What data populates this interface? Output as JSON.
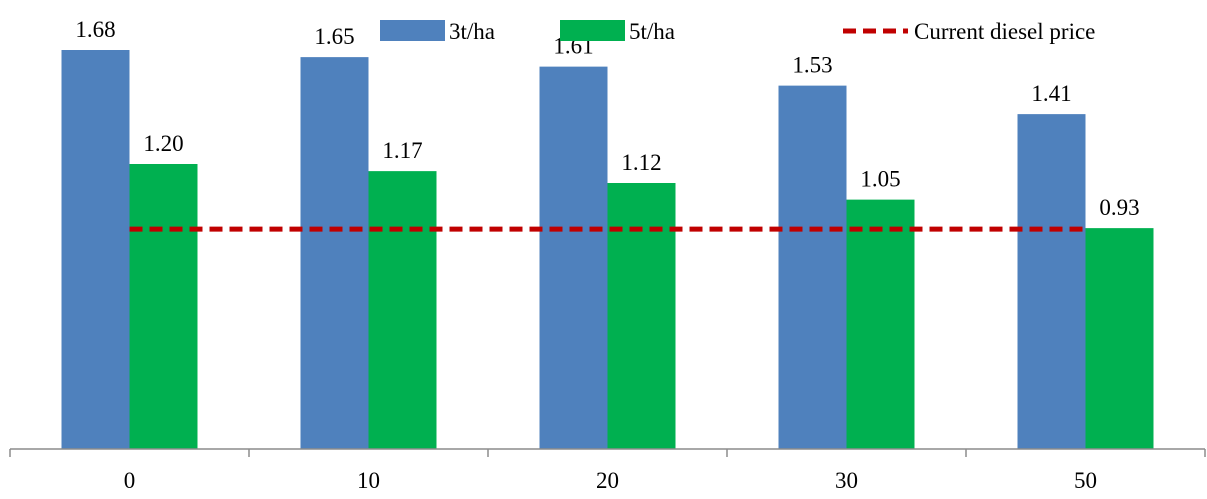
{
  "chart_data": {
    "type": "bar",
    "categories": [
      "0",
      "10",
      "20",
      "30",
      "50"
    ],
    "series": [
      {
        "name": "3t/ha",
        "values": [
          1.68,
          1.65,
          1.61,
          1.53,
          1.41
        ],
        "color": "#4f81bd"
      },
      {
        "name": "5t/ha",
        "values": [
          1.2,
          1.17,
          1.12,
          1.05,
          0.93
        ],
        "color": "#00b050"
      }
    ],
    "reference_line": {
      "name": "Current diesel price",
      "value": 0.93,
      "color": "#c00000",
      "style": "dashed"
    },
    "value_labels": [
      [
        "1.68",
        "1.65",
        "1.61",
        "1.53",
        "1.41"
      ],
      [
        "1.20",
        "1.17",
        "1.12",
        "1.05",
        "0.93"
      ]
    ],
    "title": "",
    "xlabel": "",
    "ylabel": "",
    "ylim": [
      0,
      1.68
    ],
    "grid": false,
    "legend_position": "top-right"
  }
}
